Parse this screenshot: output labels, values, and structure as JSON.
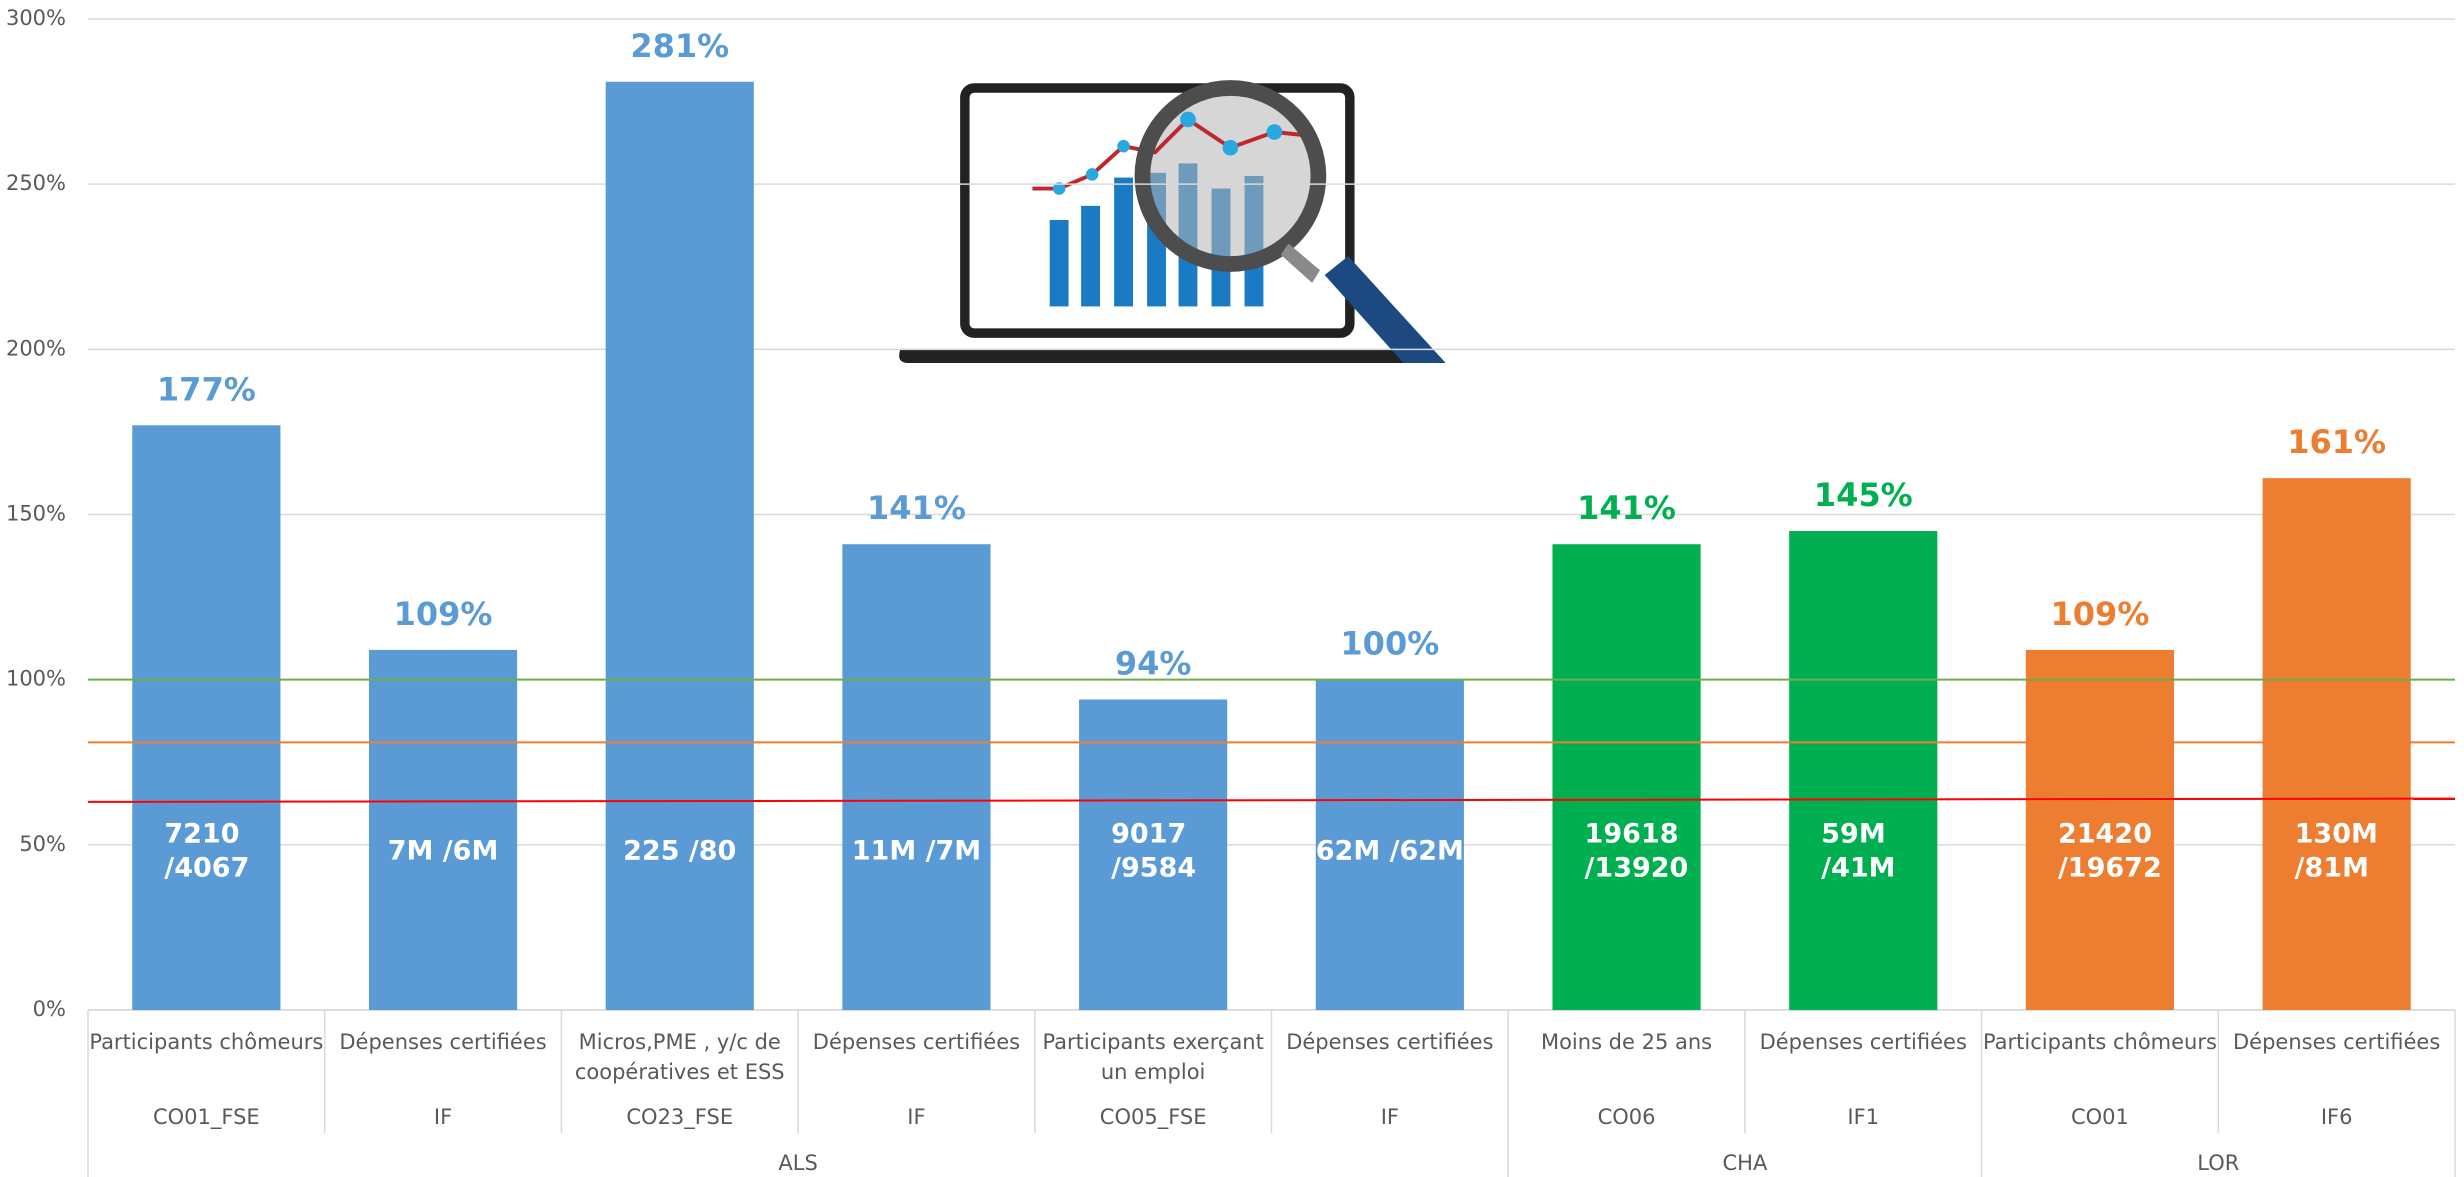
{
  "chart_data": {
    "type": "bar",
    "categories": [
      [
        "Participants chômeurs"
      ],
      [
        "Dépenses certifiées"
      ],
      [
        "Micros,PME , y/c de",
        "coopératives et ESS"
      ],
      [
        "Dépenses certifiées"
      ],
      [
        "Participants exerçant",
        "un emploi"
      ],
      [
        "Dépenses certifiées"
      ],
      [
        "Moins de 25 ans"
      ],
      [
        "Dépenses certifiées"
      ],
      [
        "Participants chômeurs"
      ],
      [
        "Dépenses certifiées"
      ]
    ],
    "codes": [
      "CO01_FSE",
      "IF",
      "CO23_FSE",
      "IF",
      "CO05_FSE",
      "IF",
      "CO06",
      "IF1",
      "CO01",
      "IF6"
    ],
    "groups": [
      "ALS",
      "ALS",
      "ALS",
      "ALS",
      "ALS",
      "ALS",
      "CHA",
      "CHA",
      "LOR",
      "LOR"
    ],
    "values": [
      177,
      109,
      281,
      141,
      94,
      100,
      141,
      145,
      109,
      161
    ],
    "value_labels": [
      "177%",
      "109%",
      "281%",
      "141%",
      "94%",
      "100%",
      "141%",
      "145%",
      "109%",
      "161%"
    ],
    "inner_labels": [
      [
        "7210",
        "/4067"
      ],
      [
        "7M  /6M"
      ],
      [
        "225 /80"
      ],
      [
        "11M /7M"
      ],
      [
        "9017",
        "/9584"
      ],
      [
        "62M /62M"
      ],
      [
        "19618",
        "/13920"
      ],
      [
        "59M",
        "/41M"
      ],
      [
        "21420",
        "/19672"
      ],
      [
        "130M",
        "/81M"
      ]
    ],
    "colors": [
      "#5b9bd5",
      "#5b9bd5",
      "#5b9bd5",
      "#5b9bd5",
      "#5b9bd5",
      "#5b9bd5",
      "#00b050",
      "#00b050",
      "#ed7d31",
      "#ed7d31"
    ],
    "reference_lines": [
      {
        "color": "#70ad47",
        "start": 100,
        "end": 100
      },
      {
        "color": "#ed7d31",
        "start": 81,
        "end": 81
      },
      {
        "color": "#ff0000",
        "start": 63,
        "end": 64
      }
    ],
    "ylim": [
      0,
      300
    ],
    "yticks": [
      {
        "value": 0,
        "label": "0%"
      },
      {
        "value": 50,
        "label": "50%"
      },
      {
        "value": 100,
        "label": "100%"
      },
      {
        "value": 150,
        "label": "150%"
      },
      {
        "value": 200,
        "label": "200%"
      },
      {
        "value": 250,
        "label": "250%"
      },
      {
        "value": 300,
        "label": "300%"
      }
    ],
    "grid": true
  }
}
